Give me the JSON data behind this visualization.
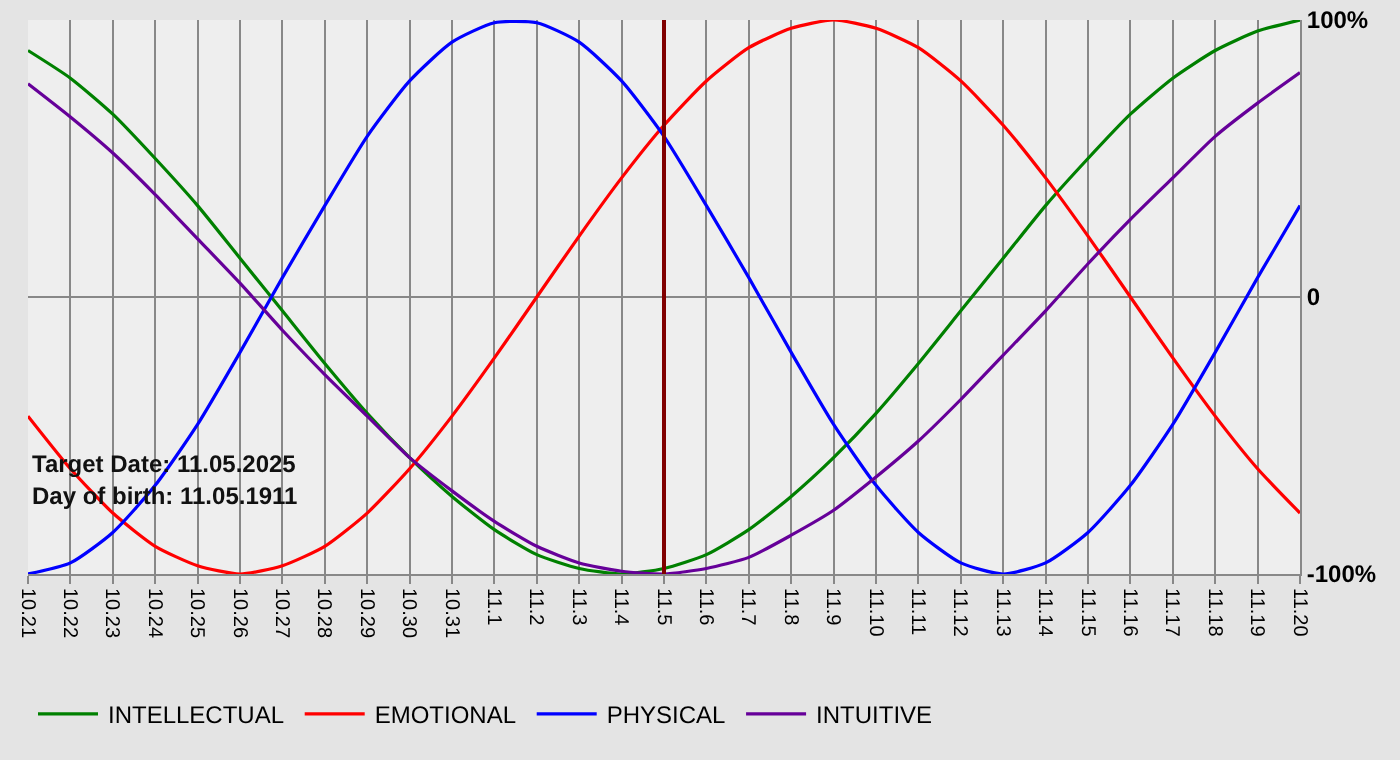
{
  "chart_data": {
    "type": "line",
    "categories": [
      "10.21",
      "10.22",
      "10.23",
      "10.24",
      "10.25",
      "10.26",
      "10.27",
      "10.28",
      "10.29",
      "10.30",
      "10.31",
      "11.1",
      "11.2",
      "11.3",
      "11.4",
      "11.5",
      "11.6",
      "11.7",
      "11.8",
      "11.9",
      "11.10",
      "11.11",
      "11.12",
      "11.13",
      "11.14",
      "11.15",
      "11.16",
      "11.17",
      "11.18",
      "11.19",
      "11.20"
    ],
    "series": [
      {
        "name": "INTELLECTUAL",
        "color": "#008000",
        "values": [
          89,
          79,
          66,
          50,
          33,
          14,
          -5,
          -24,
          -42,
          -58,
          -72,
          -84,
          -93,
          -98,
          -100,
          -98,
          -93,
          -84,
          -72,
          -58,
          -42,
          -24,
          -5,
          14,
          33,
          50,
          66,
          79,
          89,
          96,
          100
        ]
      },
      {
        "name": "EMOTIONAL",
        "color": "#ff0000",
        "values": [
          -43,
          -62,
          -78,
          -90,
          -97,
          -100,
          -97,
          -90,
          -78,
          -62,
          -43,
          -22,
          0,
          22,
          43,
          62,
          78,
          90,
          97,
          100,
          97,
          90,
          78,
          62,
          43,
          22,
          0,
          -22,
          -43,
          -62,
          -78
        ]
      },
      {
        "name": "PHYSICAL",
        "color": "#0000ff",
        "values": [
          -100,
          -96,
          -85,
          -68,
          -46,
          -20,
          7,
          33,
          58,
          78,
          92,
          99,
          99,
          92,
          78,
          58,
          33,
          7,
          -20,
          -46,
          -68,
          -85,
          -96,
          -100,
          -96,
          -85,
          -68,
          -46,
          -20,
          7,
          33
        ]
      },
      {
        "name": "INTUITIVE",
        "color": "#660099",
        "values": [
          77,
          65,
          52,
          37,
          21,
          5,
          -12,
          -28,
          -43,
          -58,
          -70,
          -81,
          -90,
          -96,
          -99,
          -100,
          -98,
          -94,
          -86,
          -77,
          -65,
          -52,
          -37,
          -21,
          -5,
          12,
          28,
          43,
          58,
          70,
          81
        ]
      }
    ],
    "ylim": [
      -100,
      100
    ],
    "yticks": [
      {
        "value": 100,
        "label": "100%"
      },
      0,
      {
        "value": -100,
        "label": "-100%"
      }
    ],
    "ref_lines": [
      {
        "axis": "x",
        "value": "11.5",
        "color": "#800000"
      }
    ],
    "annotations": [
      "Target Date: 11.05.2025",
      "Day of birth: 11.05.1911"
    ],
    "grid": true,
    "legend": "bottom left",
    "marker": "none",
    "line_style": "solid"
  }
}
